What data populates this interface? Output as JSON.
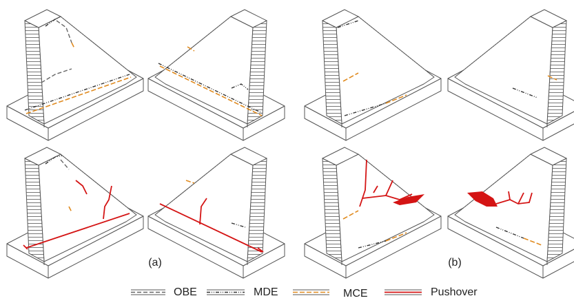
{
  "panels": {
    "a": {
      "label": "(a)"
    },
    "b": {
      "label": "(b)"
    }
  },
  "legend": {
    "items": [
      {
        "label": "OBE"
      },
      {
        "label": "MDE"
      },
      {
        "label": "MCE"
      },
      {
        "label": "Pushover"
      }
    ]
  }
}
